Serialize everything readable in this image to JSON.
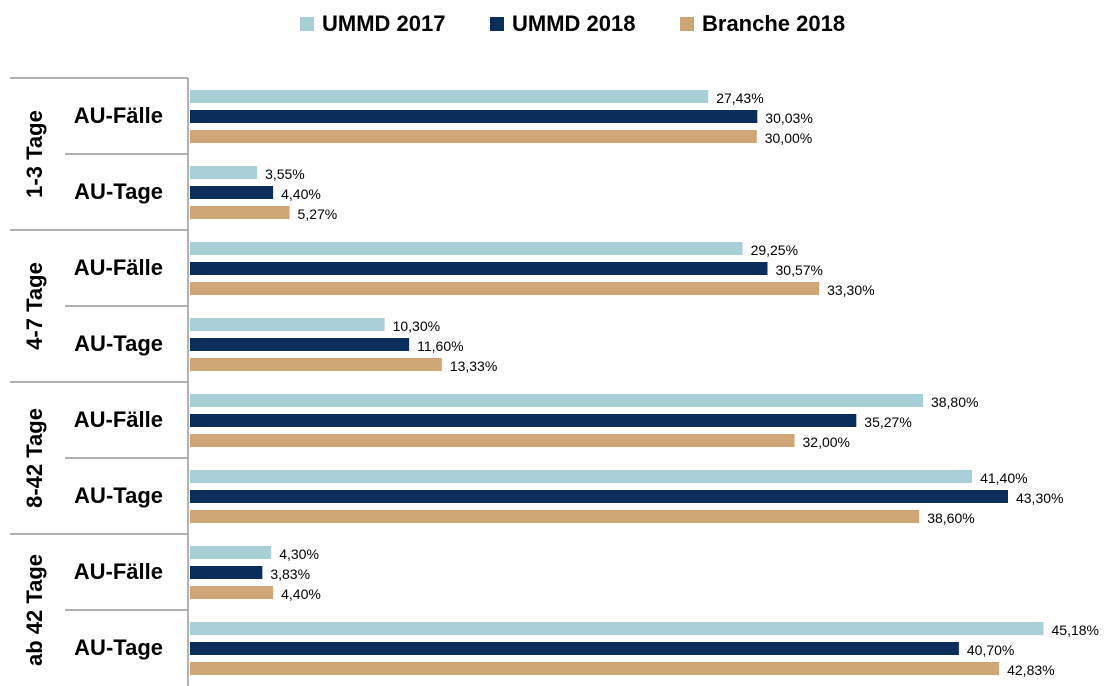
{
  "chart_data": {
    "type": "bar",
    "orientation": "horizontal",
    "groups": [
      "1-3 Tage",
      "4-7 Tage",
      "8-42 Tage",
      "ab 42 Tage"
    ],
    "categories": [
      "AU-Fälle",
      "AU-Tage",
      "AU-Fälle",
      "AU-Tage",
      "AU-Fälle",
      "AU-Tage",
      "AU-Fälle",
      "AU-Tage"
    ],
    "series": [
      {
        "name": "UMMD 2017",
        "color": "#a9cfd9",
        "values": [
          27.43,
          3.55,
          29.25,
          10.3,
          38.8,
          41.4,
          4.3,
          45.18
        ],
        "value_labels": [
          "27,43%",
          "3,55%",
          "29,25%",
          "10,30%",
          "38,80%",
          "41,40%",
          "4,30%",
          "45,18%"
        ]
      },
      {
        "name": "UMMD 2018",
        "color": "#0b2d5c",
        "values": [
          30.03,
          4.4,
          30.57,
          11.6,
          35.27,
          43.3,
          3.83,
          40.7
        ],
        "value_labels": [
          "30,03%",
          "4,40%",
          "30,57%",
          "11,60%",
          "35,27%",
          "43,30%",
          "3,83%",
          "40,70%"
        ]
      },
      {
        "name": "Branche 2018",
        "color": "#cfa676",
        "values": [
          30.0,
          5.27,
          33.3,
          13.33,
          32.0,
          38.6,
          4.4,
          42.83
        ],
        "value_labels": [
          "30,00%",
          "5,27%",
          "33,30%",
          "13,33%",
          "32,00%",
          "38,60%",
          "4,40%",
          "42,83%"
        ]
      }
    ],
    "xlim": [
      0,
      46
    ],
    "legend": "top"
  }
}
